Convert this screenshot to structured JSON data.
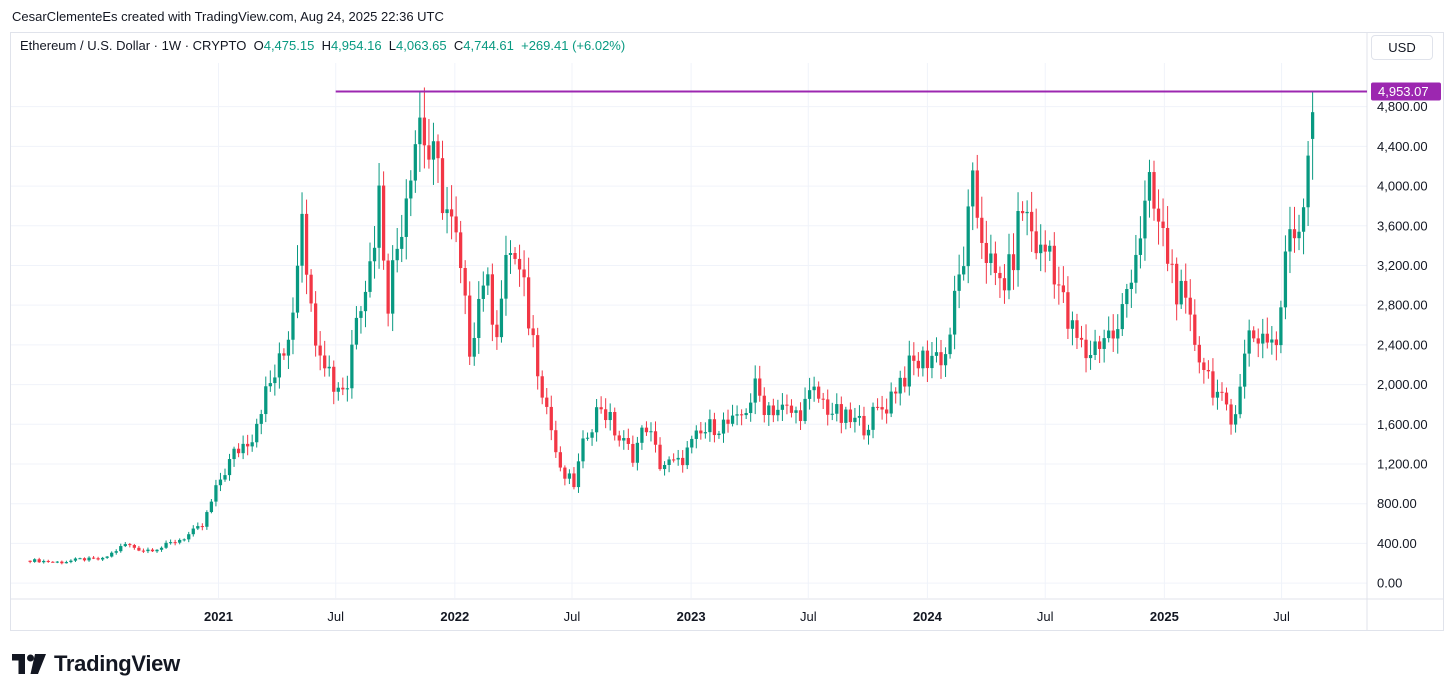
{
  "header": {
    "author_line": "CesarClementeEs created with TradingView.com, Aug 24, 2025 22:36 UTC"
  },
  "legend": {
    "symbol": "Ethereum / U.S. Dollar · 1W · CRYPTO",
    "open_key": "O",
    "open": "4,475.15",
    "high_key": "H",
    "high": "4,954.16",
    "low_key": "L",
    "low": "4,063.65",
    "close_key": "C",
    "close": "4,744.61",
    "change": "+269.41 (+6.02%)"
  },
  "currency_button": "USD",
  "footer": {
    "brand": "TradingView"
  },
  "colors": {
    "up": "#089981",
    "down": "#f23645",
    "hline": "#9c27b0",
    "grid": "#f0f3fa"
  },
  "chart_data": {
    "type": "candlestick",
    "interval": "1W",
    "ylim": [
      -150,
      5250
    ],
    "yticks": [
      {
        "label": "0.00",
        "value": 0
      },
      {
        "label": "400.00",
        "value": 400
      },
      {
        "label": "800.00",
        "value": 800
      },
      {
        "label": "1,200.00",
        "value": 1200
      },
      {
        "label": "1,600.00",
        "value": 1600
      },
      {
        "label": "2,000.00",
        "value": 2000
      },
      {
        "label": "2,400.00",
        "value": 2400
      },
      {
        "label": "2,800.00",
        "value": 2800
      },
      {
        "label": "3,200.00",
        "value": 3200
      },
      {
        "label": "3,600.00",
        "value": 3600
      },
      {
        "label": "4,000.00",
        "value": 4000
      },
      {
        "label": "4,400.00",
        "value": 4400
      },
      {
        "label": "4,800.00",
        "value": 4800
      }
    ],
    "xticks": [
      {
        "label": "2021",
        "date": "2021-01-01",
        "bold": true
      },
      {
        "label": "Jul",
        "date": "2021-07-01",
        "bold": false
      },
      {
        "label": "2022",
        "date": "2022-01-01",
        "bold": true
      },
      {
        "label": "Jul",
        "date": "2022-07-01",
        "bold": false
      },
      {
        "label": "2023",
        "date": "2023-01-01",
        "bold": true
      },
      {
        "label": "Jul",
        "date": "2023-07-01",
        "bold": false
      },
      {
        "label": "2024",
        "date": "2024-01-01",
        "bold": true
      },
      {
        "label": "Jul",
        "date": "2024-07-01",
        "bold": false
      },
      {
        "label": "2025",
        "date": "2025-01-01",
        "bold": true
      },
      {
        "label": "Jul",
        "date": "2025-07-01",
        "bold": false
      }
    ],
    "xrange": [
      "2020-02-17",
      "2025-11-10"
    ],
    "horizontal_line": {
      "value": 4953.07,
      "label": "4,953.07",
      "start_date": "2021-07-01"
    },
    "anchors": [
      [
        "2020-03-16",
        230
      ],
      [
        "2020-05-04",
        210
      ],
      [
        "2020-06-01",
        240
      ],
      [
        "2020-07-06",
        240
      ],
      [
        "2020-08-10",
        390
      ],
      [
        "2020-09-07",
        330
      ],
      [
        "2020-10-05",
        360
      ],
      [
        "2020-11-09",
        460
      ],
      [
        "2020-12-07",
        570
      ],
      [
        "2021-01-04",
        1050
      ],
      [
        "2021-01-25",
        1300
      ],
      [
        "2021-02-22",
        1500
      ],
      [
        "2021-03-08",
        1800
      ],
      [
        "2021-04-12",
        2300
      ],
      [
        "2021-04-26",
        2800
      ],
      [
        "2021-05-10",
        3900
      ],
      [
        "2021-05-24",
        2700
      ],
      [
        "2021-06-14",
        2300
      ],
      [
        "2021-06-28",
        2000
      ],
      [
        "2021-07-19",
        2000
      ],
      [
        "2021-08-02",
        2800
      ],
      [
        "2021-08-23",
        3200
      ],
      [
        "2021-09-06",
        3900
      ],
      [
        "2021-09-20",
        2900
      ],
      [
        "2021-10-04",
        3400
      ],
      [
        "2021-10-25",
        4300
      ],
      [
        "2021-11-08",
        4700
      ],
      [
        "2021-11-22",
        4300
      ],
      [
        "2021-12-06",
        4100
      ],
      [
        "2022-01-03",
        3400
      ],
      [
        "2022-01-24",
        2400
      ],
      [
        "2022-02-14",
        3100
      ],
      [
        "2022-03-07",
        2600
      ],
      [
        "2022-03-28",
        3400
      ],
      [
        "2022-04-18",
        2900
      ],
      [
        "2022-05-16",
        2000
      ],
      [
        "2022-06-13",
        1100
      ],
      [
        "2022-07-04",
        1000
      ],
      [
        "2022-07-25",
        1550
      ],
      [
        "2022-08-15",
        1800
      ],
      [
        "2022-09-12",
        1450
      ],
      [
        "2022-10-03",
        1300
      ],
      [
        "2022-10-24",
        1600
      ],
      [
        "2022-11-14",
        1200
      ],
      [
        "2022-12-12",
        1200
      ],
      [
        "2023-01-09",
        1450
      ],
      [
        "2023-02-06",
        1600
      ],
      [
        "2023-03-13",
        1600
      ],
      [
        "2023-04-10",
        1950
      ],
      [
        "2023-04-24",
        1800
      ],
      [
        "2023-06-12",
        1700
      ],
      [
        "2023-07-10",
        1900
      ],
      [
        "2023-08-21",
        1650
      ],
      [
        "2023-09-25",
        1600
      ],
      [
        "2023-10-30",
        1800
      ],
      [
        "2023-11-13",
        2000
      ],
      [
        "2023-12-11",
        2200
      ],
      [
        "2024-01-08",
        2300
      ],
      [
        "2024-01-29",
        2300
      ],
      [
        "2024-02-26",
        3300
      ],
      [
        "2024-03-11",
        3900
      ],
      [
        "2024-04-15",
        3000
      ],
      [
        "2024-05-06",
        3100
      ],
      [
        "2024-05-27",
        3800
      ],
      [
        "2024-06-24",
        3300
      ],
      [
        "2024-07-08",
        3400
      ],
      [
        "2024-08-05",
        2600
      ],
      [
        "2024-09-02",
        2300
      ],
      [
        "2024-09-30",
        2500
      ],
      [
        "2024-10-21",
        2500
      ],
      [
        "2024-11-11",
        3200
      ],
      [
        "2024-12-09",
        3900
      ],
      [
        "2025-01-06",
        3300
      ],
      [
        "2025-02-03",
        2700
      ],
      [
        "2025-03-03",
        2200
      ],
      [
        "2025-03-31",
        1800
      ],
      [
        "2025-04-14",
        1600
      ],
      [
        "2025-05-12",
        2500
      ],
      [
        "2025-06-09",
        2500
      ],
      [
        "2025-06-23",
        2400
      ],
      [
        "2025-07-14",
        3600
      ],
      [
        "2025-07-28",
        3600
      ],
      [
        "2025-08-11",
        4400
      ],
      [
        "2025-08-18",
        4744.61
      ]
    ]
  }
}
